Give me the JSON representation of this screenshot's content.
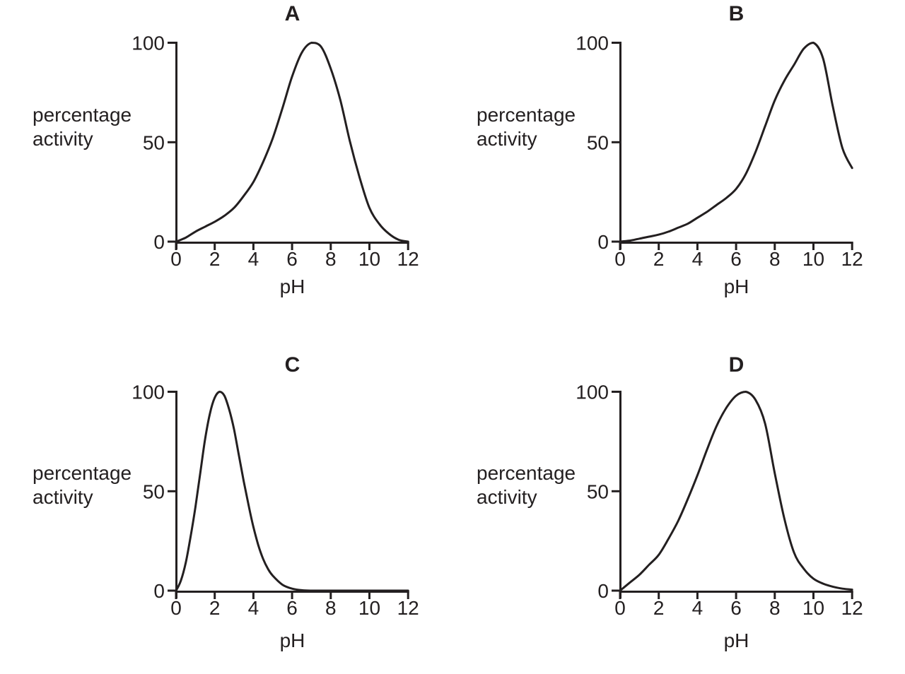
{
  "figure": {
    "background": "#ffffff",
    "ink_color": "#231f20"
  },
  "chart_data": [
    {
      "type": "line",
      "title": "A",
      "xlabel": "pH",
      "ylabel": "percentage activity",
      "ylabel_lines": [
        "percentage",
        "activity"
      ],
      "xlim": [
        0,
        12
      ],
      "ylim": [
        0,
        100
      ],
      "x_ticks": [
        0,
        2,
        4,
        6,
        8,
        10,
        12
      ],
      "y_ticks": [
        0,
        50,
        100
      ],
      "grid": false,
      "points": [
        [
          0,
          0
        ],
        [
          0.5,
          2
        ],
        [
          1,
          5
        ],
        [
          1.5,
          7.5
        ],
        [
          2,
          10
        ],
        [
          2.5,
          13
        ],
        [
          3,
          17
        ],
        [
          3.5,
          23
        ],
        [
          4,
          30
        ],
        [
          4.5,
          40
        ],
        [
          5,
          52
        ],
        [
          5.5,
          67
        ],
        [
          6,
          83
        ],
        [
          6.5,
          95
        ],
        [
          7,
          100
        ],
        [
          7.5,
          98
        ],
        [
          8,
          87
        ],
        [
          8.5,
          71
        ],
        [
          9,
          50
        ],
        [
          9.5,
          32
        ],
        [
          10,
          17
        ],
        [
          10.5,
          9
        ],
        [
          11,
          4
        ],
        [
          11.5,
          1
        ],
        [
          12,
          0
        ]
      ]
    },
    {
      "type": "line",
      "title": "B",
      "xlabel": "pH",
      "ylabel": "percentage activity",
      "ylabel_lines": [
        "percentage",
        "activity"
      ],
      "xlim": [
        0,
        12
      ],
      "ylim": [
        0,
        100
      ],
      "x_ticks": [
        0,
        2,
        4,
        6,
        8,
        10,
        12
      ],
      "y_ticks": [
        0,
        50,
        100
      ],
      "grid": false,
      "points": [
        [
          0,
          0
        ],
        [
          0.5,
          0.5
        ],
        [
          1,
          1.5
        ],
        [
          1.5,
          2.5
        ],
        [
          2,
          3.5
        ],
        [
          2.5,
          5
        ],
        [
          3,
          7
        ],
        [
          3.5,
          9
        ],
        [
          4,
          12
        ],
        [
          4.5,
          15
        ],
        [
          5,
          18.5
        ],
        [
          5.5,
          22
        ],
        [
          6,
          26.5
        ],
        [
          6.5,
          34
        ],
        [
          7,
          45
        ],
        [
          7.5,
          58
        ],
        [
          8,
          71
        ],
        [
          8.5,
          81
        ],
        [
          9,
          89
        ],
        [
          9.5,
          97
        ],
        [
          10,
          100
        ],
        [
          10.5,
          92
        ],
        [
          11,
          68
        ],
        [
          11.5,
          47
        ],
        [
          12,
          37
        ]
      ]
    },
    {
      "type": "line",
      "title": "C",
      "xlabel": "pH",
      "ylabel": "percentage activity",
      "ylabel_lines": [
        "percentage",
        "activity"
      ],
      "xlim": [
        0,
        12
      ],
      "ylim": [
        0,
        100
      ],
      "x_ticks": [
        0,
        2,
        4,
        6,
        8,
        10,
        12
      ],
      "y_ticks": [
        0,
        50,
        100
      ],
      "grid": false,
      "points": [
        [
          0,
          0
        ],
        [
          0.25,
          5
        ],
        [
          0.5,
          14
        ],
        [
          0.75,
          27
        ],
        [
          1,
          42
        ],
        [
          1.25,
          59
        ],
        [
          1.5,
          76
        ],
        [
          1.75,
          89
        ],
        [
          2,
          97
        ],
        [
          2.25,
          100
        ],
        [
          2.5,
          98
        ],
        [
          2.75,
          91
        ],
        [
          3,
          81
        ],
        [
          3.25,
          68
        ],
        [
          3.5,
          55
        ],
        [
          3.75,
          43
        ],
        [
          4,
          32
        ],
        [
          4.25,
          23
        ],
        [
          4.5,
          16
        ],
        [
          4.75,
          11
        ],
        [
          5,
          7.5
        ],
        [
          5.5,
          3
        ],
        [
          6,
          1
        ],
        [
          6.5,
          0.2
        ],
        [
          7,
          0
        ],
        [
          8,
          0
        ],
        [
          9,
          0
        ],
        [
          10,
          0
        ],
        [
          11,
          0
        ],
        [
          12,
          0
        ]
      ]
    },
    {
      "type": "line",
      "title": "D",
      "xlabel": "pH",
      "ylabel": "percentage activity",
      "ylabel_lines": [
        "percentage",
        "activity"
      ],
      "xlim": [
        0,
        12
      ],
      "ylim": [
        0,
        100
      ],
      "x_ticks": [
        0,
        2,
        4,
        6,
        8,
        10,
        12
      ],
      "y_ticks": [
        0,
        50,
        100
      ],
      "grid": false,
      "points": [
        [
          0,
          0
        ],
        [
          0.5,
          4
        ],
        [
          1,
          8
        ],
        [
          1.5,
          13
        ],
        [
          2,
          18
        ],
        [
          2.5,
          26
        ],
        [
          3,
          35
        ],
        [
          3.5,
          46
        ],
        [
          4,
          58
        ],
        [
          4.5,
          71
        ],
        [
          5,
          83
        ],
        [
          5.5,
          92
        ],
        [
          6,
          98
        ],
        [
          6.5,
          100
        ],
        [
          7,
          96
        ],
        [
          7.5,
          84
        ],
        [
          8,
          59
        ],
        [
          8.5,
          36
        ],
        [
          9,
          19
        ],
        [
          9.5,
          11
        ],
        [
          10,
          6
        ],
        [
          10.5,
          3.5
        ],
        [
          11,
          2
        ],
        [
          11.5,
          1
        ],
        [
          12,
          0.5
        ]
      ]
    }
  ]
}
